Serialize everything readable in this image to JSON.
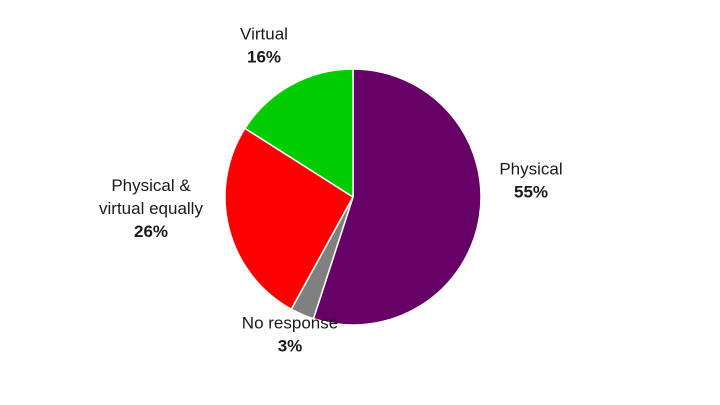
{
  "chart_data": {
    "type": "pie",
    "start_angle_deg": 0,
    "direction": "clockwise",
    "slices": [
      {
        "label_lines": [
          "Physical"
        ],
        "label": "Physical",
        "value": 55,
        "value_label": "55%",
        "color": "#660066"
      },
      {
        "label_lines": [
          "No response"
        ],
        "label": "No response",
        "value": 3,
        "value_label": "3%",
        "color": "#808080"
      },
      {
        "label_lines": [
          "Physical &",
          "virtual equally"
        ],
        "label": "Physical & virtual equally",
        "value": 26,
        "value_label": "26%",
        "color": "#ff0000"
      },
      {
        "label_lines": [
          "Virtual"
        ],
        "label": "Virtual",
        "value": 16,
        "value_label": "16%",
        "color": "#00cc00"
      }
    ]
  }
}
